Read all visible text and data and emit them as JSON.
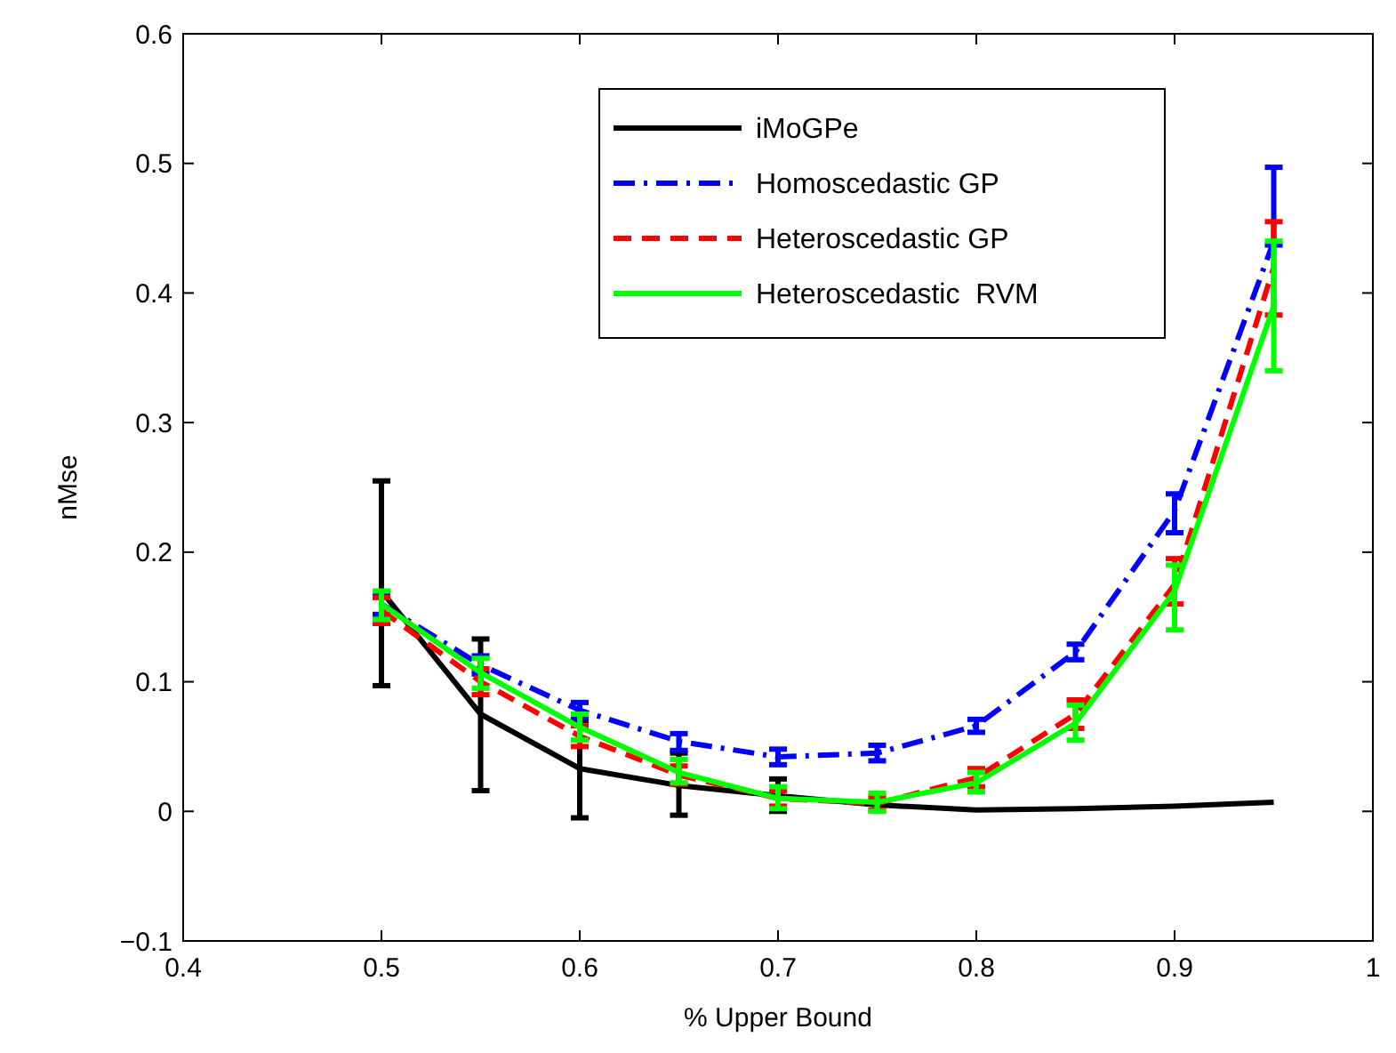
{
  "chart_data": {
    "type": "line",
    "xlabel": "% Upper Bound",
    "ylabel": "nMse",
    "xlim": [
      0.4,
      1
    ],
    "xticks": [
      {
        "value": 0.4,
        "label": "0.4"
      },
      {
        "value": 0.5,
        "label": "0.5"
      },
      {
        "value": 0.6,
        "label": "0.6"
      },
      {
        "value": 0.7,
        "label": "0.7"
      },
      {
        "value": 0.8,
        "label": "0.8"
      },
      {
        "value": 0.9,
        "label": "0.9"
      },
      {
        "value": 1,
        "label": "1"
      }
    ],
    "ylim": [
      -0.1,
      0.6
    ],
    "yticks": [
      {
        "value": -0.1,
        "label": "−0.1"
      },
      {
        "value": 0,
        "label": "0"
      },
      {
        "value": 0.1,
        "label": "0.1"
      },
      {
        "value": 0.2,
        "label": "0.2"
      },
      {
        "value": 0.3,
        "label": "0.3"
      },
      {
        "value": 0.4,
        "label": "0.4"
      },
      {
        "value": 0.5,
        "label": "0.5"
      },
      {
        "value": 0.6,
        "label": "0.6"
      }
    ],
    "grid": false,
    "legend": "top",
    "x": [
      0.5,
      0.55,
      0.6,
      0.65,
      0.7,
      0.75,
      0.8,
      0.85,
      0.9,
      0.95
    ],
    "series": [
      {
        "name": "iMoGPe",
        "color": "#000000",
        "line_style": "solid",
        "values": [
          0.17,
          0.075,
          0.033,
          0.02,
          0.012,
          0.005,
          0.001,
          0.002,
          0.004,
          0.007
        ],
        "errors": [
          [
            0.097,
            0.255
          ],
          [
            0.016,
            0.133
          ],
          [
            -0.005,
            0.07
          ],
          [
            -0.003,
            0.045
          ],
          [
            0.0,
            0.025
          ],
          null,
          null,
          null,
          null,
          null
        ]
      },
      {
        "name": "Homoscedastic GP",
        "color": "#0000ff",
        "line_style": "dashdot",
        "values": [
          0.16,
          0.113,
          0.078,
          0.054,
          0.042,
          0.045,
          0.066,
          0.123,
          0.232,
          0.44
        ],
        "errors": [
          [
            0.152,
            0.168
          ],
          [
            0.106,
            0.12
          ],
          [
            0.072,
            0.084
          ],
          [
            0.047,
            0.06
          ],
          [
            0.036,
            0.048
          ],
          [
            0.039,
            0.051
          ],
          [
            0.061,
            0.071
          ],
          [
            0.117,
            0.129
          ],
          [
            0.215,
            0.245
          ],
          [
            0.437,
            0.497
          ]
        ]
      },
      {
        "name": "Heteroscedastic GP",
        "color": "#ff0000",
        "line_style": "dashed",
        "values": [
          0.155,
          0.1,
          0.058,
          0.028,
          0.01,
          0.006,
          0.026,
          0.075,
          0.175,
          0.42
        ],
        "errors": [
          [
            0.145,
            0.165
          ],
          [
            0.09,
            0.11
          ],
          [
            0.05,
            0.066
          ],
          [
            0.021,
            0.035
          ],
          [
            0.004,
            0.016
          ],
          [
            0.001,
            0.011
          ],
          [
            0.019,
            0.033
          ],
          [
            0.064,
            0.086
          ],
          [
            0.16,
            0.195
          ],
          [
            0.383,
            0.455
          ]
        ]
      },
      {
        "name": "Heteroscedastic  RVM",
        "color": "#00ff00",
        "line_style": "solid",
        "values": [
          0.16,
          0.107,
          0.065,
          0.03,
          0.01,
          0.007,
          0.022,
          0.068,
          0.17,
          0.39
        ],
        "errors": [
          [
            0.148,
            0.17
          ],
          [
            0.095,
            0.118
          ],
          [
            0.055,
            0.075
          ],
          [
            0.022,
            0.04
          ],
          [
            0.002,
            0.019
          ],
          [
            0.0,
            0.014
          ],
          [
            0.015,
            0.03
          ],
          [
            0.055,
            0.082
          ],
          [
            0.14,
            0.19
          ],
          [
            0.34,
            0.44
          ]
        ]
      }
    ]
  }
}
